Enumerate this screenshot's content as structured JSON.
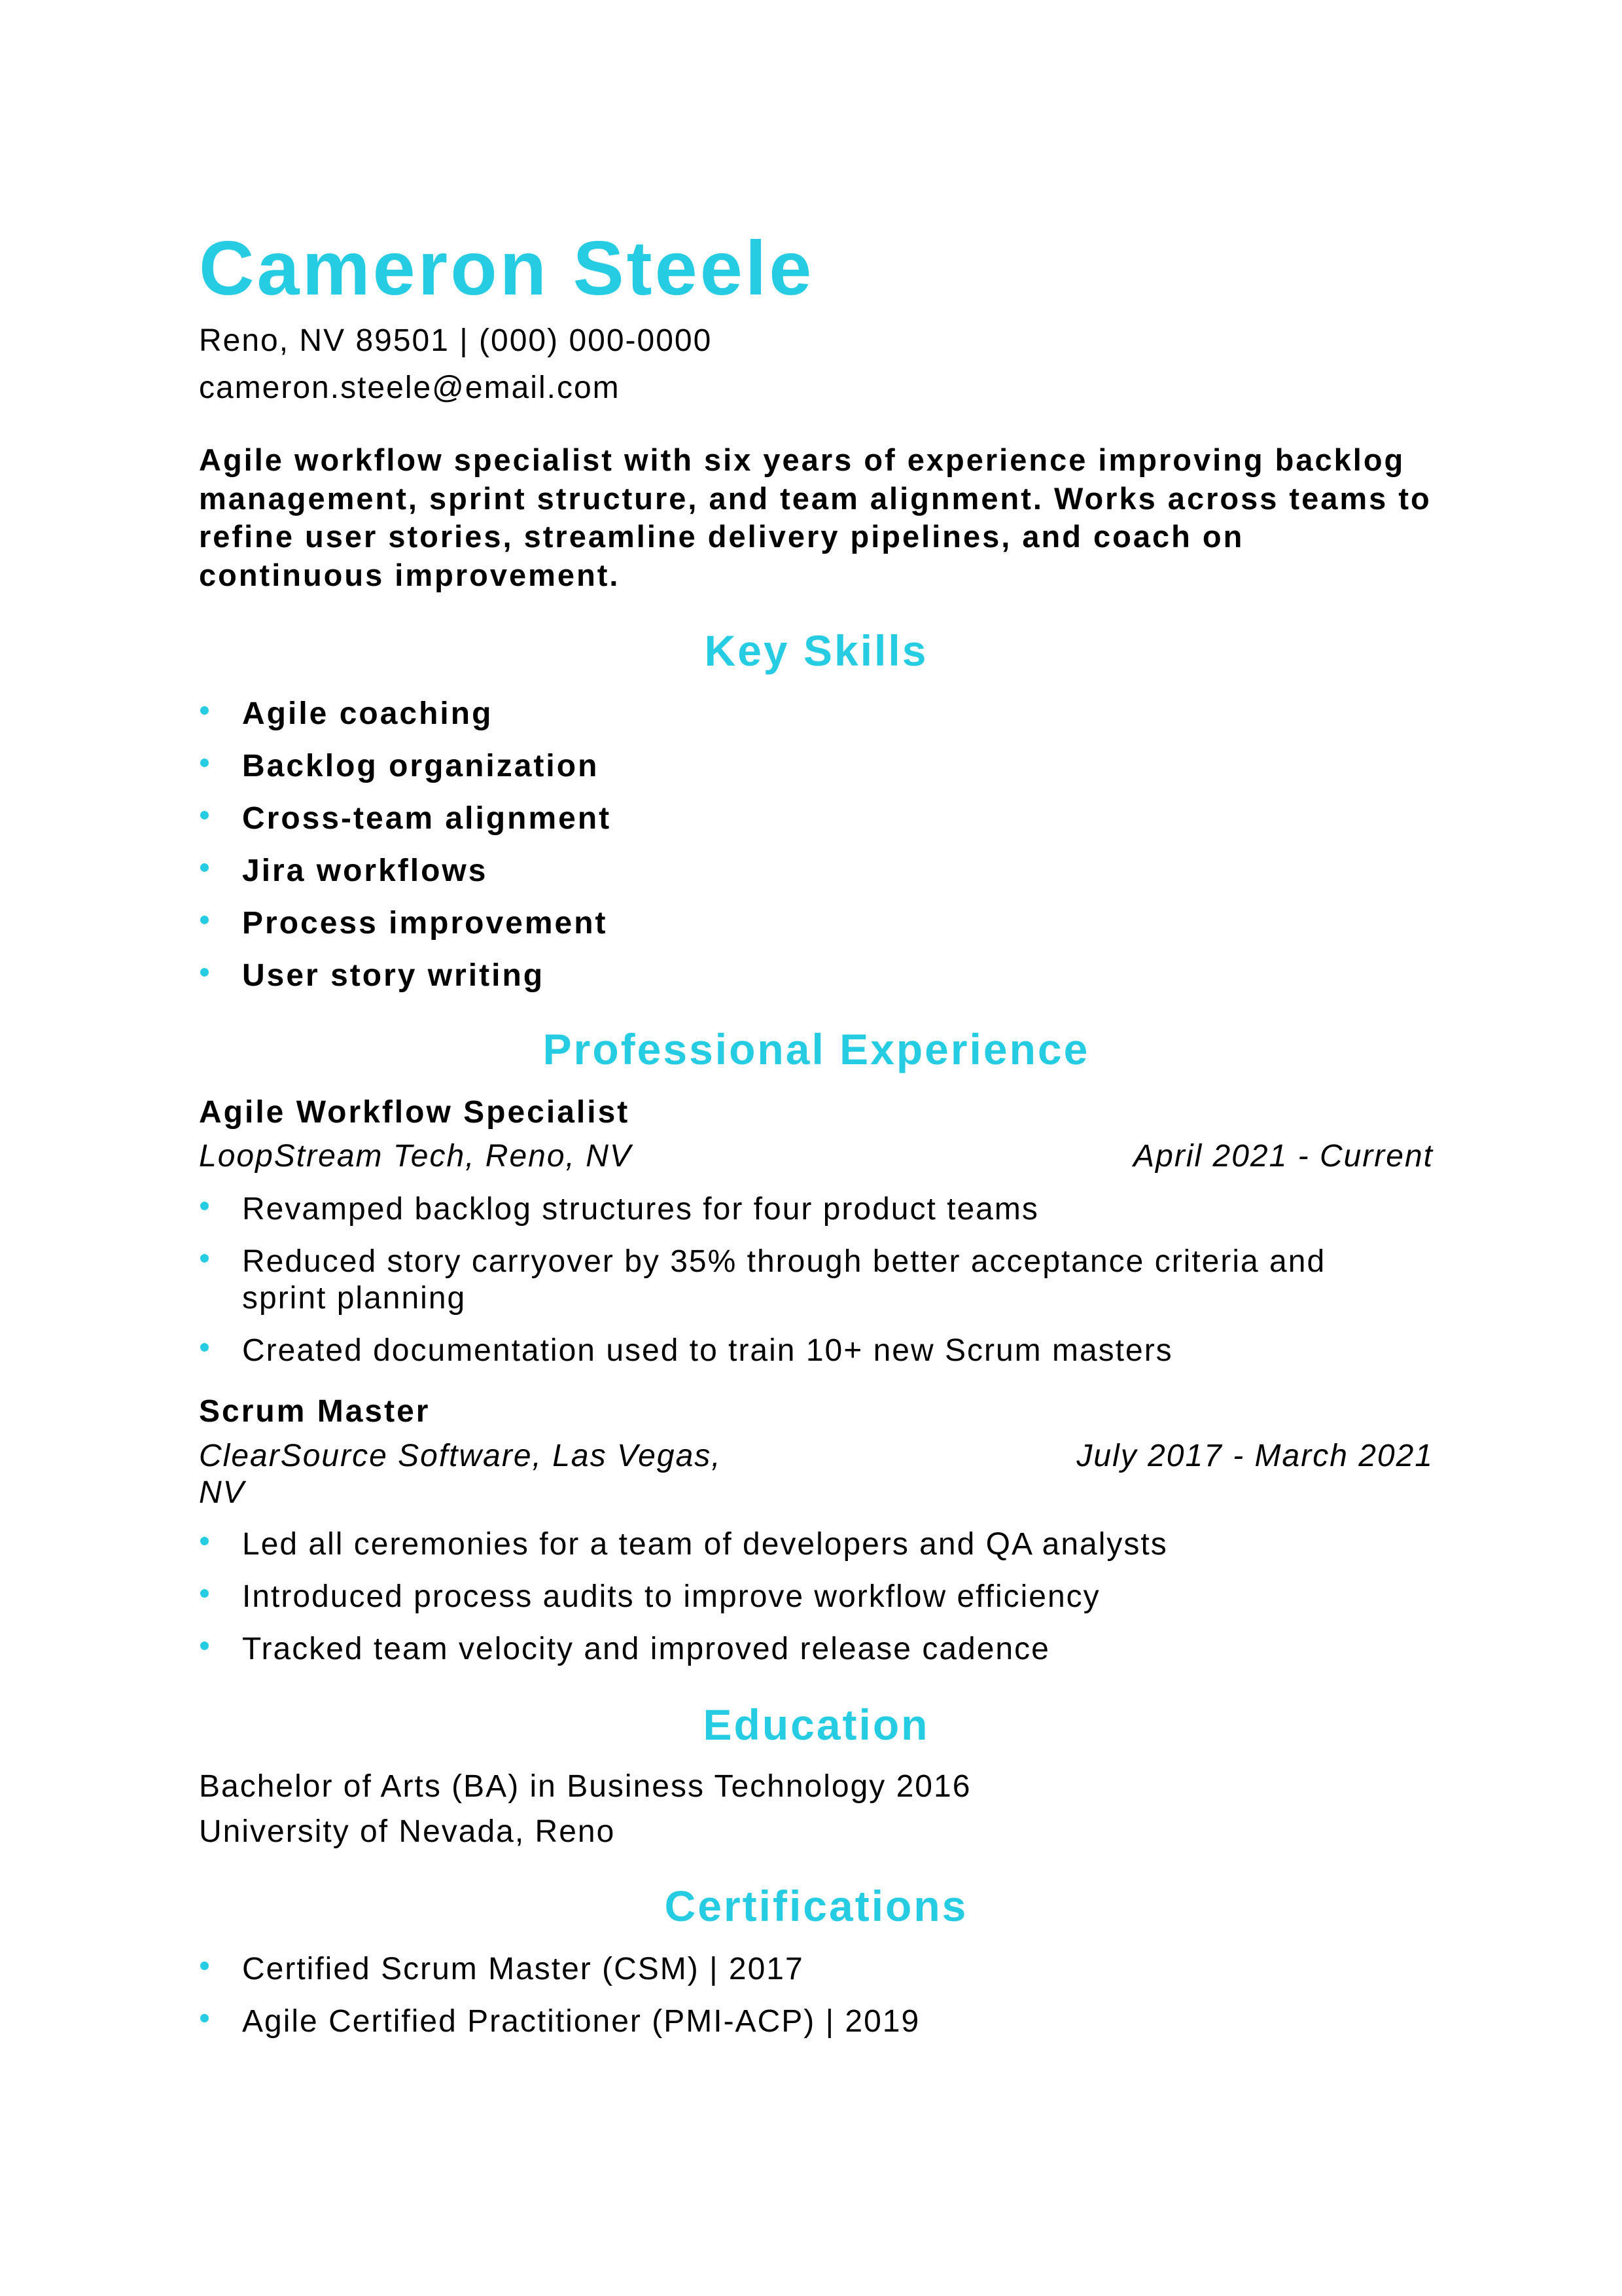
{
  "header": {
    "name": "Cameron Steele",
    "contact_line": "Reno, NV 89501 | (000) 000-0000",
    "email": "cameron.steele@email.com"
  },
  "summary": "Agile workflow specialist with six years of experience improving backlog management, sprint structure, and team alignment. Works across teams to refine user stories, streamline delivery pipelines, and coach on continuous improvement.",
  "skills": {
    "heading": "Key Skills",
    "items": [
      "Agile coaching",
      "Backlog organization",
      "Cross-team alignment",
      "Jira workflows",
      "Process improvement",
      "User story writing"
    ]
  },
  "experience": {
    "heading": "Professional Experience",
    "jobs": [
      {
        "title": "Agile Workflow Specialist",
        "company": "LoopStream Tech, Reno, NV",
        "dates": "April 2021 - Current",
        "bullets": [
          "Revamped backlog structures for four product teams",
          "Reduced story carryover by 35% through better acceptance criteria and sprint planning",
          "Created documentation used to train 10+ new Scrum masters"
        ]
      },
      {
        "title": "Scrum Master",
        "company": "ClearSource Software, Las Vegas, NV",
        "dates": "July 2017 - March 2021",
        "bullets": [
          "Led all ceremonies for a team of developers and QA analysts",
          "Introduced process audits to improve workflow efficiency",
          "Tracked team velocity and improved release cadence"
        ]
      }
    ]
  },
  "education": {
    "heading": "Education",
    "degree": "Bachelor of Arts (BA) in Business Technology 2016",
    "school": "University of Nevada, Reno"
  },
  "certifications": {
    "heading": "Certifications",
    "items": [
      "Certified Scrum Master (CSM) | 2017",
      "Agile Certified Practitioner (PMI-ACP) | 2019"
    ]
  },
  "colors": {
    "accent": "#26CCE2",
    "text": "#000000"
  }
}
